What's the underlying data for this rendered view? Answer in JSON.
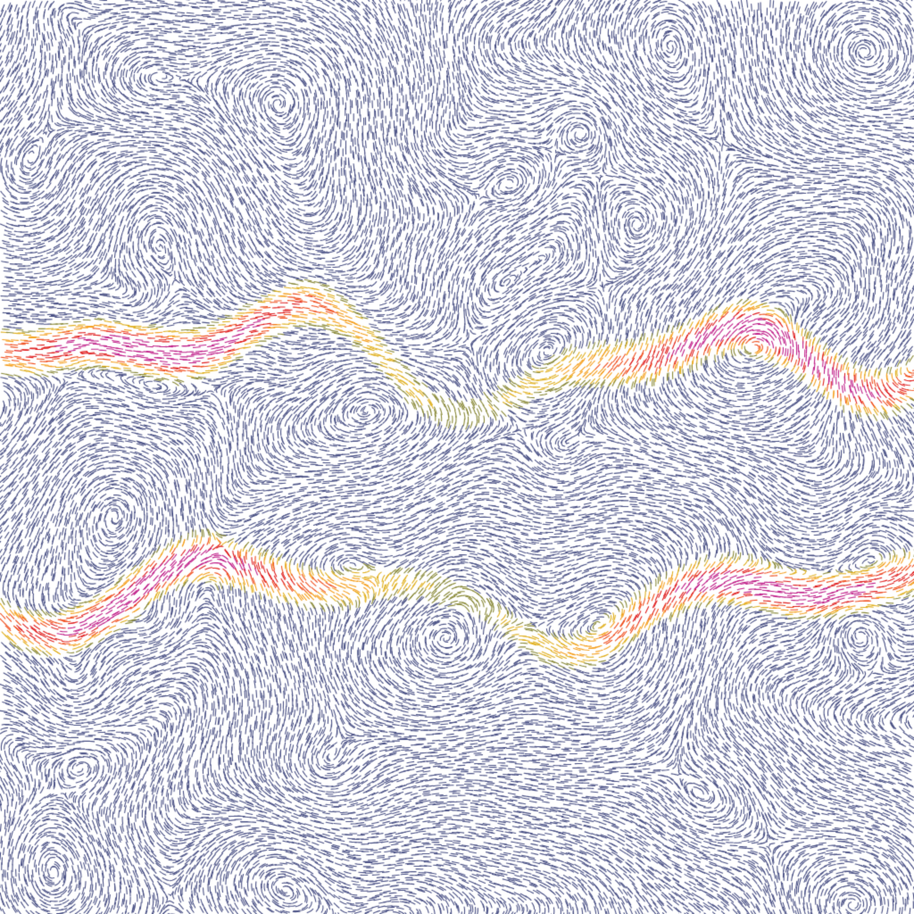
{
  "visualization": {
    "kind": "flow-field-streamlets",
    "background_color": "#ffffff",
    "base_stroke_color": "#4b5286",
    "speed_colormap": [
      "#4b5286",
      "#8a8a3a",
      "#e0b020",
      "#f5a020",
      "#f05020",
      "#e02020",
      "#c0208a"
    ],
    "jets": [
      {
        "label": "upper-band"
      },
      {
        "label": "lower-band"
      }
    ]
  }
}
